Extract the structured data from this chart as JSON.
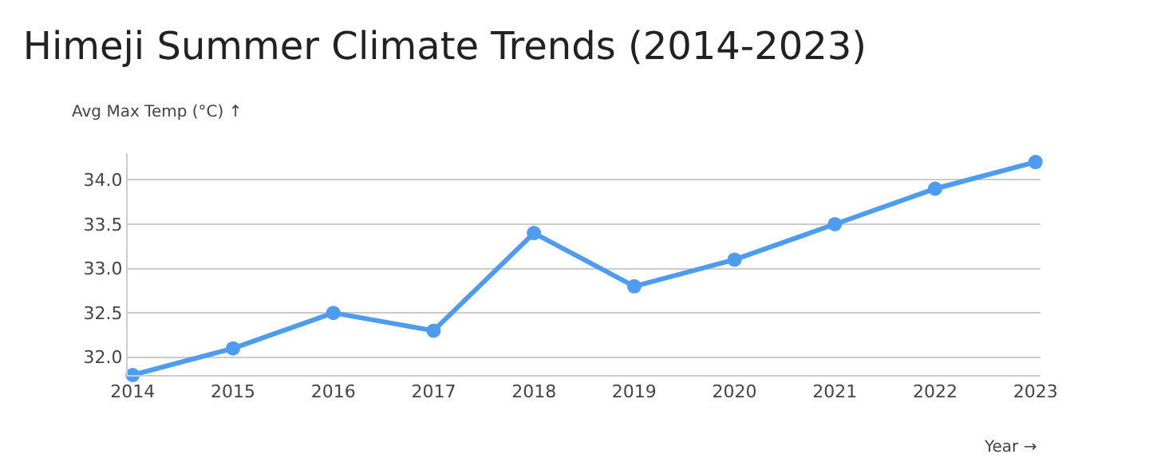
{
  "chart_data": {
    "type": "line",
    "title": "Himeji Summer Climate Trends (2014-2023)",
    "xlabel": "Year →",
    "ylabel": "Avg Max Temp (°C) ↑",
    "categories": [
      "2014",
      "2015",
      "2016",
      "2017",
      "2018",
      "2019",
      "2020",
      "2021",
      "2022",
      "2023"
    ],
    "series": [
      {
        "color": "#4e9cf0",
        "values": [
          31.8,
          32.1,
          32.5,
          32.3,
          33.4,
          32.8,
          33.1,
          33.5,
          33.9,
          34.2
        ]
      }
    ],
    "ylim": [
      31.8,
      34.3
    ],
    "yticks": [
      {
        "value": 32,
        "label": "32.0"
      },
      {
        "value": 32.5,
        "label": "32.5"
      },
      {
        "value": 33,
        "label": "33.0"
      },
      {
        "value": 33.5,
        "label": "33.5"
      },
      {
        "value": 34,
        "label": "34.0"
      }
    ],
    "grid": "y",
    "marker": "circle",
    "line_style": "solid",
    "legend": false
  }
}
